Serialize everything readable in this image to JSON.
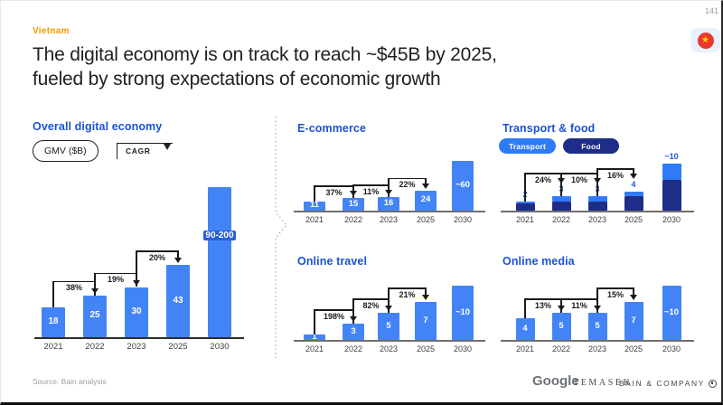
{
  "page": {
    "number": "141"
  },
  "header": {
    "tag": "Vietnam",
    "title_line1": "The digital economy is on track to reach ~$45B by 2025,",
    "title_line2": "fueled by strong expectations of economic growth"
  },
  "left_panel": {
    "gmv_label": "GMV ($B)",
    "cagr_label": "CAGR"
  },
  "footer": {
    "source": "Source: Bain analysis",
    "logos": {
      "google": "Google",
      "temasek": "TEMASEK",
      "bain": "BAIN & COMPANY"
    }
  },
  "colors": {
    "bar_blue": "#4284F5",
    "transport_blue": "#2F7BF6",
    "food_navy": "#1E2D87",
    "accent_blue": "#1B52D6",
    "tag_orange": "#F29900",
    "flag_red": "#E8392C",
    "flag_star": "#FFD500"
  },
  "chart_data": [
    {
      "id": "overall",
      "type": "bar",
      "title": "Overall digital economy",
      "unit": "GMV ($B)",
      "categories": [
        "2021",
        "2022",
        "2023",
        "2025",
        "2030"
      ],
      "values": [
        18,
        25,
        30,
        43,
        90
      ],
      "bar_labels": [
        "18",
        "25",
        "30",
        "43",
        "90-200"
      ],
      "cagr_annotations": [
        {
          "from": "2021",
          "to": "2022",
          "pct": "38%"
        },
        {
          "from": "2022",
          "to": "2023",
          "pct": "19%"
        },
        {
          "from": "2023",
          "to": "2025",
          "pct": "20%"
        }
      ]
    },
    {
      "id": "ecommerce",
      "type": "bar",
      "title": "E-commerce",
      "unit": "GMV ($B)",
      "categories": [
        "2021",
        "2022",
        "2023",
        "2025",
        "2030"
      ],
      "values": [
        11,
        15,
        16,
        24,
        60
      ],
      "bar_labels": [
        "11",
        "15",
        "16",
        "24",
        "~60"
      ],
      "cagr_annotations": [
        {
          "from": "2021",
          "to": "2022",
          "pct": "37%"
        },
        {
          "from": "2022",
          "to": "2023",
          "pct": "11%"
        },
        {
          "from": "2023",
          "to": "2025",
          "pct": "22%"
        }
      ]
    },
    {
      "id": "transport_food",
      "type": "stacked_bar",
      "title": "Transport & food",
      "unit": "GMV ($B)",
      "categories": [
        "2021",
        "2022",
        "2023",
        "2025",
        "2030"
      ],
      "series": [
        {
          "name": "Transport",
          "values": [
            0.5,
            1,
            1,
            1,
            3.5
          ]
        },
        {
          "name": "Food",
          "values": [
            1.5,
            2,
            2,
            3,
            6.5
          ]
        }
      ],
      "totals": [
        2,
        3,
        3,
        4,
        10
      ],
      "bar_labels": [
        "2",
        "3",
        "3",
        "4",
        "~10"
      ],
      "cagr_annotations": [
        {
          "from": "2021",
          "to": "2022",
          "pct": "24%"
        },
        {
          "from": "2022",
          "to": "2023",
          "pct": "10%"
        },
        {
          "from": "2023",
          "to": "2025",
          "pct": "16%"
        }
      ]
    },
    {
      "id": "travel",
      "type": "bar",
      "title": "Online travel",
      "unit": "GMV ($B)",
      "categories": [
        "2021",
        "2022",
        "2023",
        "2025",
        "2030"
      ],
      "values": [
        1,
        3,
        5,
        7,
        10
      ],
      "bar_labels": [
        "1",
        "3",
        "5",
        "7",
        "~10"
      ],
      "cagr_annotations": [
        {
          "from": "2021",
          "to": "2022",
          "pct": "198%"
        },
        {
          "from": "2022",
          "to": "2023",
          "pct": "82%"
        },
        {
          "from": "2023",
          "to": "2025",
          "pct": "21%"
        }
      ]
    },
    {
      "id": "media",
      "type": "bar",
      "title": "Online media",
      "unit": "GMV ($B)",
      "categories": [
        "2021",
        "2022",
        "2023",
        "2025",
        "2030"
      ],
      "values": [
        4,
        5,
        5,
        7,
        10
      ],
      "bar_labels": [
        "4",
        "5",
        "5",
        "7",
        "~10"
      ],
      "cagr_annotations": [
        {
          "from": "2021",
          "to": "2022",
          "pct": "13%"
        },
        {
          "from": "2022",
          "to": "2023",
          "pct": "11%"
        },
        {
          "from": "2023",
          "to": "2025",
          "pct": "15%"
        }
      ]
    }
  ]
}
